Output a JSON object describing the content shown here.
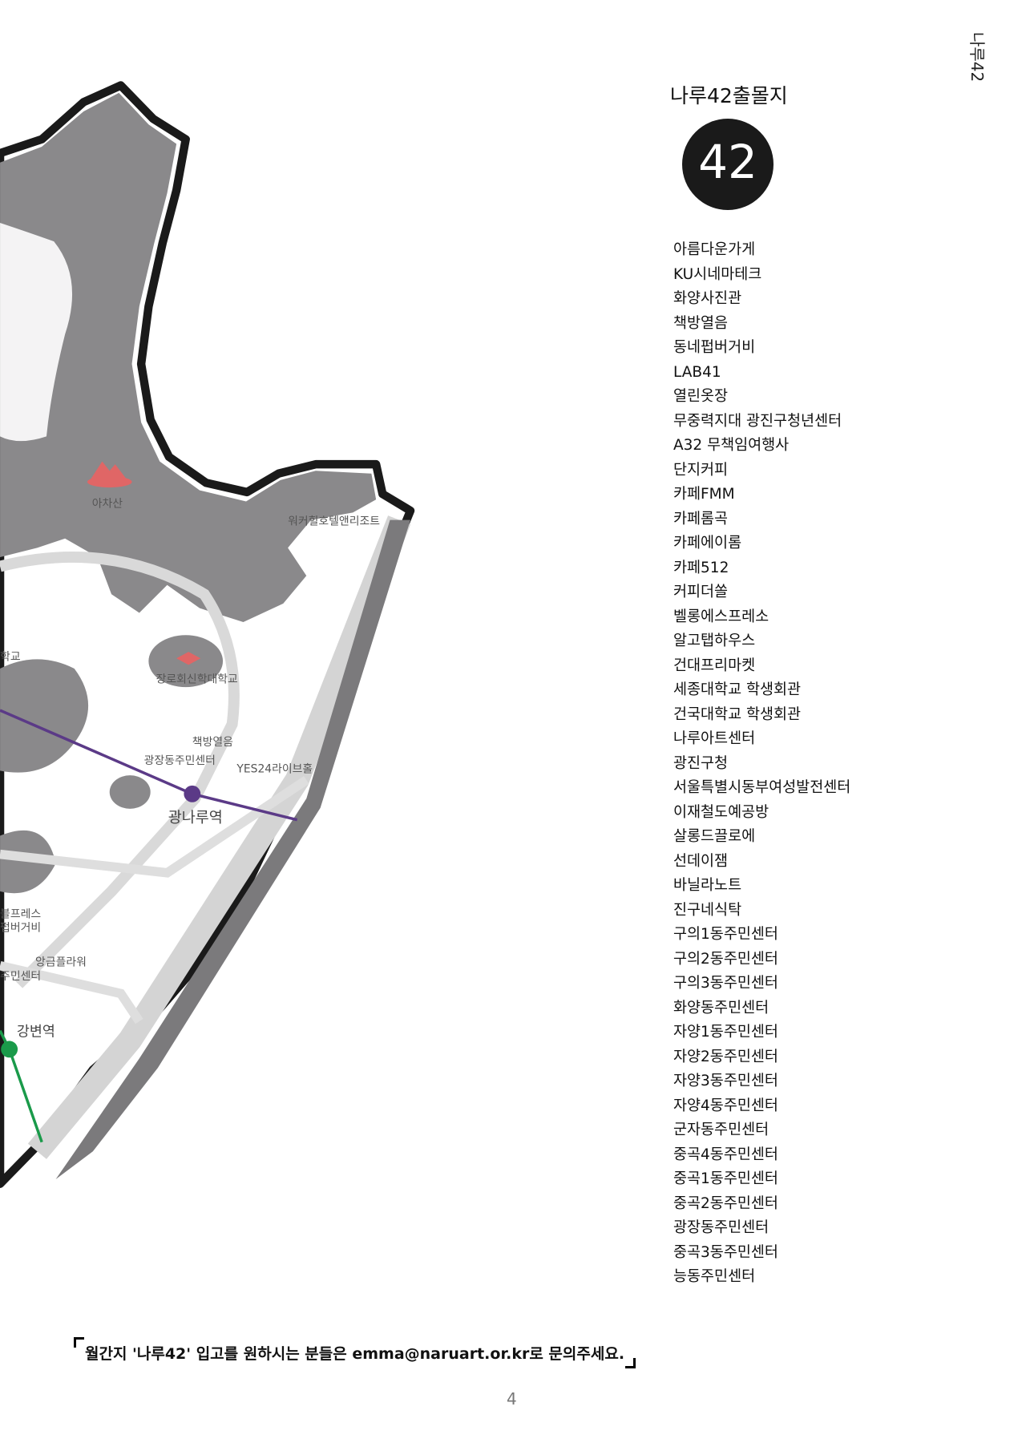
{
  "side_label": "나루42",
  "heading": "나루42출몰지",
  "logo_text": "42",
  "places": [
    "아름다운가게",
    "KU시네마테크",
    "화양사진관",
    "책방열음",
    "동네펍버거비",
    "LAB41",
    "열린옷장",
    "무중력지대 광진구청년센터",
    "A32 무책임여행사",
    "단지커피",
    "카페FMM",
    "카페롬곡",
    "카페에이롬",
    "카페512",
    "커피더쏠",
    "벨롱에스프레소",
    "알고탭하우스",
    "건대프리마켓",
    "세종대학교 학생회관",
    "건국대학교 학생회관",
    "나루아트센터",
    "광진구청",
    "서울특별시동부여성발전센터",
    "이재철도예공방",
    "살롱드끌로에",
    "선데이잼",
    "바닐라노트",
    "진구네식탁",
    "구의1동주민센터",
    "구의2동주민센터",
    "구의3동주민센터",
    "화양동주민센터",
    "자양1동주민센터",
    "자양2동주민센터",
    "자양3동주민센터",
    "자양4동주민센터",
    "군자동주민센터",
    "중곡4동주민센터",
    "중곡1동주민센터",
    "중곡2동주민센터",
    "광장동주민센터",
    "중곡3동주민센터",
    "능동주민센터"
  ],
  "map_labels": [
    "아차산",
    "워커힐호텔앤리조트",
    "장로회신학대학교",
    "책방열음",
    "광장동주민센터",
    "YES24라이브홀",
    "광나루역",
    "강변역",
    "학교",
    "블프레스",
    "펍버거비",
    "앙금플라워",
    "주민센터"
  ],
  "footer_note": "월간지 '나루42' 입고를 원하시는 분들은 emma@naruart.or.kr로 문의주세요.",
  "page_number": "4"
}
